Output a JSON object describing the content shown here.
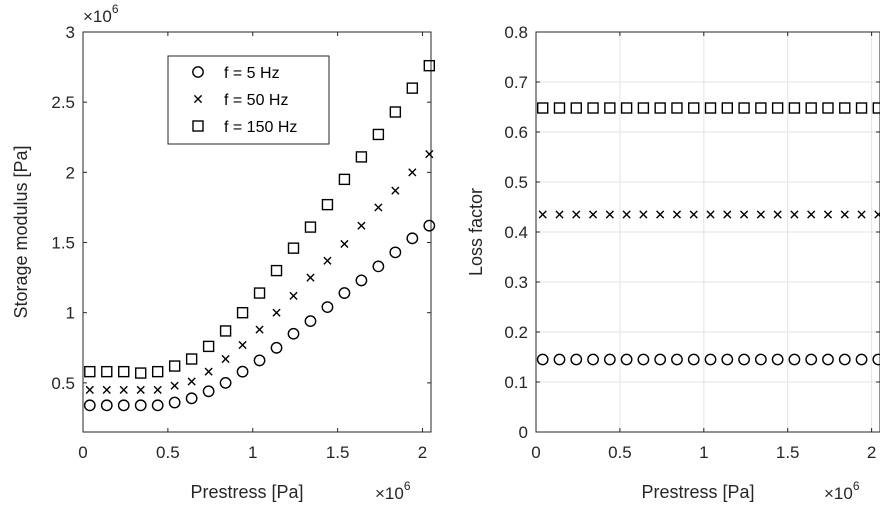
{
  "chart_data": [
    {
      "type": "scatter",
      "xlabel": "Prestress [Pa]",
      "ylabel": "Storage modulus [Pa]",
      "x_multiplier": "×10",
      "x_exponent": "6",
      "y_multiplier": "×10",
      "y_exponent": "6",
      "xlim": [
        0,
        2.05
      ],
      "ylim": [
        0.15,
        3
      ],
      "xticks": [
        "0",
        "0.5",
        "1",
        "1.5",
        "2"
      ],
      "xtick_values": [
        0,
        0.5,
        1,
        1.5,
        2
      ],
      "yticks": [
        "0.5",
        "1",
        "1.5",
        "2",
        "2.5",
        "3"
      ],
      "ytick_values": [
        0.5,
        1,
        1.5,
        2,
        2.5,
        3
      ],
      "grid": false,
      "legend_position": "top-center",
      "x": [
        0.04,
        0.14,
        0.24,
        0.34,
        0.44,
        0.54,
        0.64,
        0.74,
        0.84,
        0.94,
        1.04,
        1.14,
        1.24,
        1.34,
        1.44,
        1.54,
        1.64,
        1.74,
        1.84,
        1.94,
        2.04
      ],
      "series": [
        {
          "name": "f = 5 Hz",
          "marker": "circle",
          "values": [
            0.34,
            0.34,
            0.34,
            0.34,
            0.34,
            0.36,
            0.39,
            0.44,
            0.5,
            0.58,
            0.66,
            0.75,
            0.85,
            0.94,
            1.04,
            1.14,
            1.23,
            1.33,
            1.43,
            1.53,
            1.62
          ]
        },
        {
          "name": "f = 50 Hz",
          "marker": "x",
          "values": [
            0.45,
            0.45,
            0.45,
            0.45,
            0.45,
            0.48,
            0.51,
            0.58,
            0.67,
            0.77,
            0.88,
            1.0,
            1.12,
            1.25,
            1.37,
            1.49,
            1.62,
            1.75,
            1.87,
            2.0,
            2.13
          ]
        },
        {
          "name": "f = 150 Hz",
          "marker": "square",
          "values": [
            0.58,
            0.58,
            0.58,
            0.57,
            0.58,
            0.62,
            0.67,
            0.76,
            0.87,
            1.0,
            1.14,
            1.3,
            1.46,
            1.61,
            1.77,
            1.95,
            2.11,
            2.27,
            2.43,
            2.6,
            2.76
          ]
        }
      ]
    },
    {
      "type": "scatter",
      "xlabel": "Prestress [Pa]",
      "ylabel": "Loss factor",
      "x_multiplier": "×10",
      "x_exponent": "6",
      "xlim": [
        0,
        2.05
      ],
      "ylim": [
        0,
        0.8
      ],
      "xticks": [
        "0",
        "0.5",
        "1",
        "1.5",
        "2"
      ],
      "xtick_values": [
        0,
        0.5,
        1,
        1.5,
        2
      ],
      "yticks": [
        "0",
        "0.1",
        "0.2",
        "0.3",
        "0.4",
        "0.5",
        "0.6",
        "0.7",
        "0.8"
      ],
      "ytick_values": [
        0,
        0.1,
        0.2,
        0.3,
        0.4,
        0.5,
        0.6,
        0.7,
        0.8
      ],
      "grid": true,
      "x": [
        0.04,
        0.14,
        0.24,
        0.34,
        0.44,
        0.54,
        0.64,
        0.74,
        0.84,
        0.94,
        1.04,
        1.14,
        1.24,
        1.34,
        1.44,
        1.54,
        1.64,
        1.74,
        1.84,
        1.94,
        2.04
      ],
      "series": [
        {
          "marker": "circle",
          "values": [
            0.145,
            0.145,
            0.145,
            0.145,
            0.145,
            0.145,
            0.145,
            0.145,
            0.145,
            0.145,
            0.145,
            0.145,
            0.145,
            0.145,
            0.145,
            0.145,
            0.145,
            0.145,
            0.145,
            0.145,
            0.145
          ]
        },
        {
          "marker": "x",
          "values": [
            0.435,
            0.435,
            0.435,
            0.435,
            0.435,
            0.435,
            0.435,
            0.435,
            0.435,
            0.435,
            0.435,
            0.435,
            0.435,
            0.435,
            0.435,
            0.435,
            0.435,
            0.435,
            0.435,
            0.435,
            0.435
          ]
        },
        {
          "marker": "square",
          "values": [
            0.648,
            0.648,
            0.648,
            0.648,
            0.648,
            0.648,
            0.648,
            0.648,
            0.648,
            0.648,
            0.648,
            0.648,
            0.648,
            0.648,
            0.648,
            0.648,
            0.648,
            0.648,
            0.648,
            0.648,
            0.648
          ]
        }
      ]
    }
  ]
}
